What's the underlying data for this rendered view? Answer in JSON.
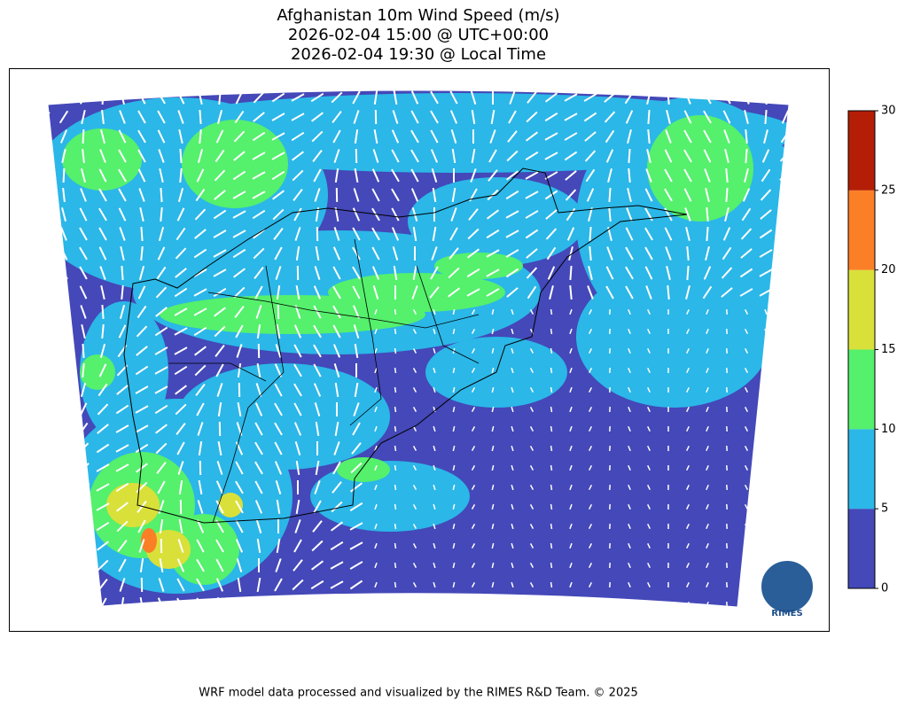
{
  "title": [
    "Afghanistan 10m Wind Speed (m/s)",
    "2026-02-04 15:00 @ UTC+00:00",
    "2026-02-04 19:30 @ Local Time"
  ],
  "colorbar": {
    "lim": [
      0,
      30
    ],
    "ticks": [
      0,
      5,
      10,
      15,
      20,
      25,
      30
    ],
    "levels": [
      [
        0,
        5
      ],
      [
        5,
        10
      ],
      [
        10,
        15
      ],
      [
        15,
        20
      ],
      [
        20,
        25
      ],
      [
        25,
        30
      ]
    ],
    "colors": [
      "#4448b8",
      "#2bb7e8",
      "#55f06c",
      "#d9e039",
      "#fb7f27",
      "#b41e06"
    ]
  },
  "logo": "RIMES",
  "footer": "WRF model data processed and visualized by the RIMES R&D Team. © 2025"
}
